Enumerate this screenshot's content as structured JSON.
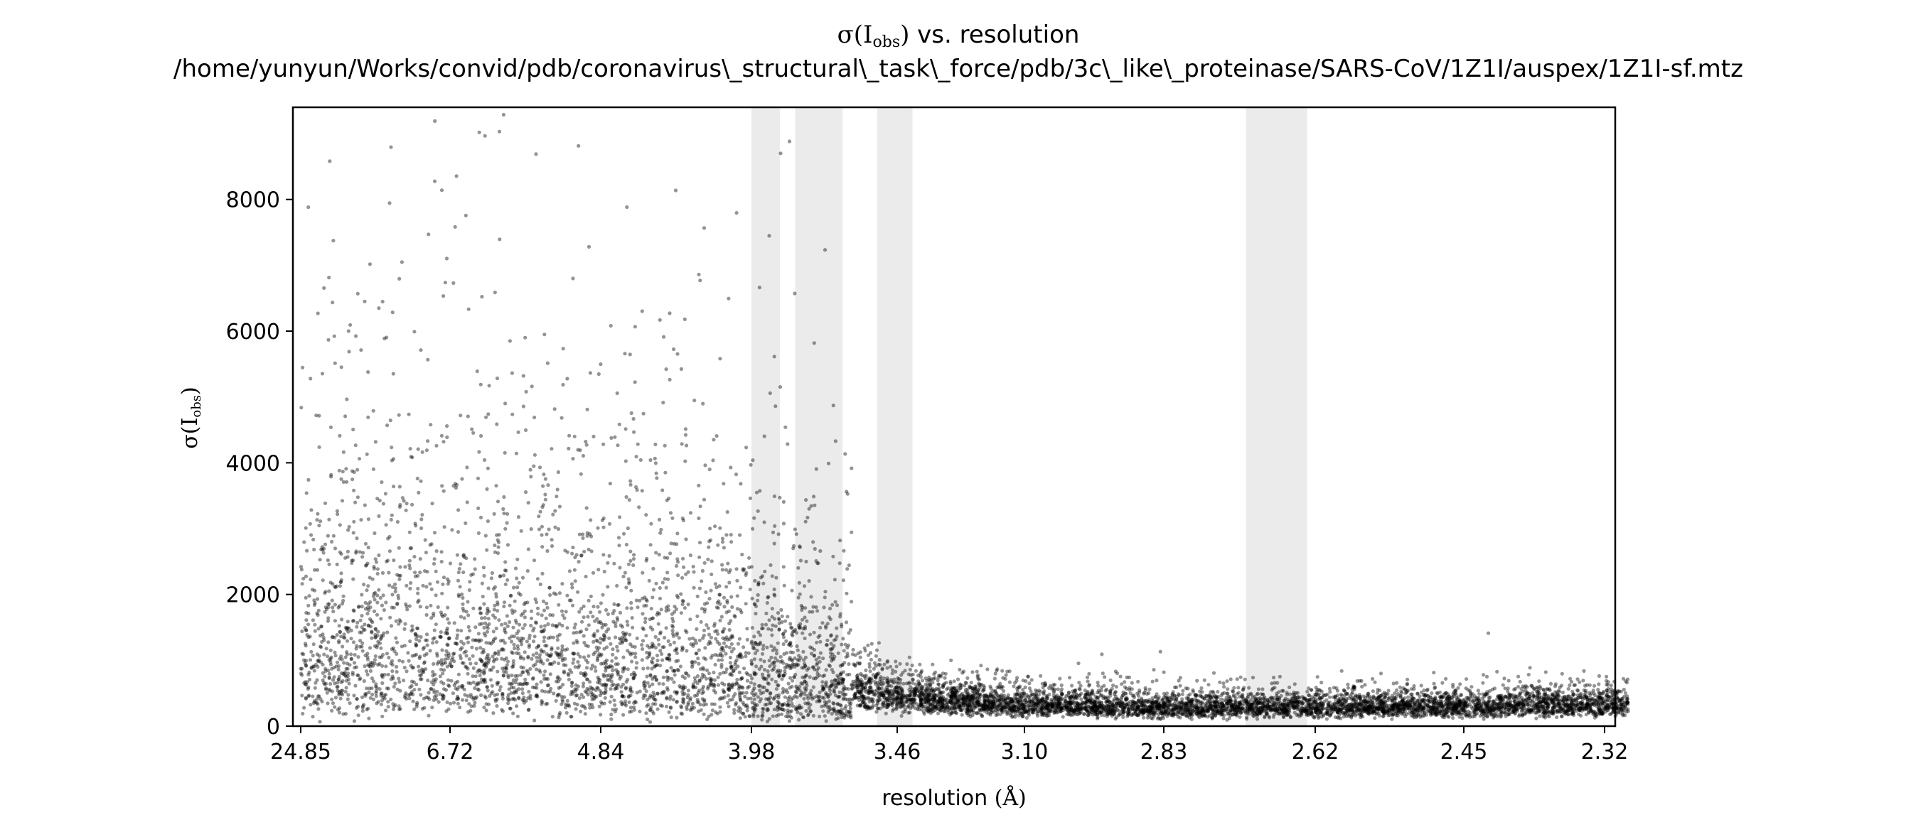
{
  "chart_data": {
    "type": "scatter",
    "title": {
      "symbol": "σ(I",
      "subscript": "obs",
      "close": ")",
      "suffix": " vs. resolution",
      "path": "/home/yunyun/Works/convid/pdb/coronavirus\\_structural\\_task\\_force/pdb/3c\\_like\\_proteinase/SARS-CoV/1Z1I/auspex/1Z1I-sf.mtz"
    },
    "xlabel": {
      "text": "resolution ",
      "unit": "(Å)"
    },
    "ylabel": {
      "symbol": "σ(I",
      "subscript": "obs",
      "close": ")"
    },
    "x_scale": "1/d^2",
    "x_range_resolution": [
      25.0,
      2.3
    ],
    "y_range": [
      0,
      9400
    ],
    "x_ticks": [
      "24.85",
      "6.72",
      "4.84",
      "3.98",
      "3.46",
      "3.10",
      "2.83",
      "2.62",
      "2.45",
      "2.32"
    ],
    "y_ticks": [
      0,
      2000,
      4000,
      6000,
      8000
    ],
    "ice_ring_bands_resolution": [
      [
        3.98,
        3.86
      ],
      [
        3.8,
        3.63
      ],
      [
        3.52,
        3.41
      ],
      [
        2.71,
        2.63
      ]
    ],
    "point_color": "#000000",
    "point_opacity": 0.42,
    "band_color": "#ebebeb",
    "series_density_samples": [
      {
        "resolution": 8.0,
        "sigma_median": 1300
      },
      {
        "resolution": 4.84,
        "sigma_median": 1200
      },
      {
        "resolution": 3.98,
        "sigma_median": 900
      },
      {
        "resolution": 3.46,
        "sigma_median": 450
      },
      {
        "resolution": 3.1,
        "sigma_median": 330
      },
      {
        "resolution": 2.83,
        "sigma_median": 300
      },
      {
        "resolution": 2.62,
        "sigma_median": 300
      },
      {
        "resolution": 2.45,
        "sigma_median": 310
      },
      {
        "resolution": 2.32,
        "sigma_median": 340
      }
    ],
    "grid": false,
    "legend": "none"
  }
}
